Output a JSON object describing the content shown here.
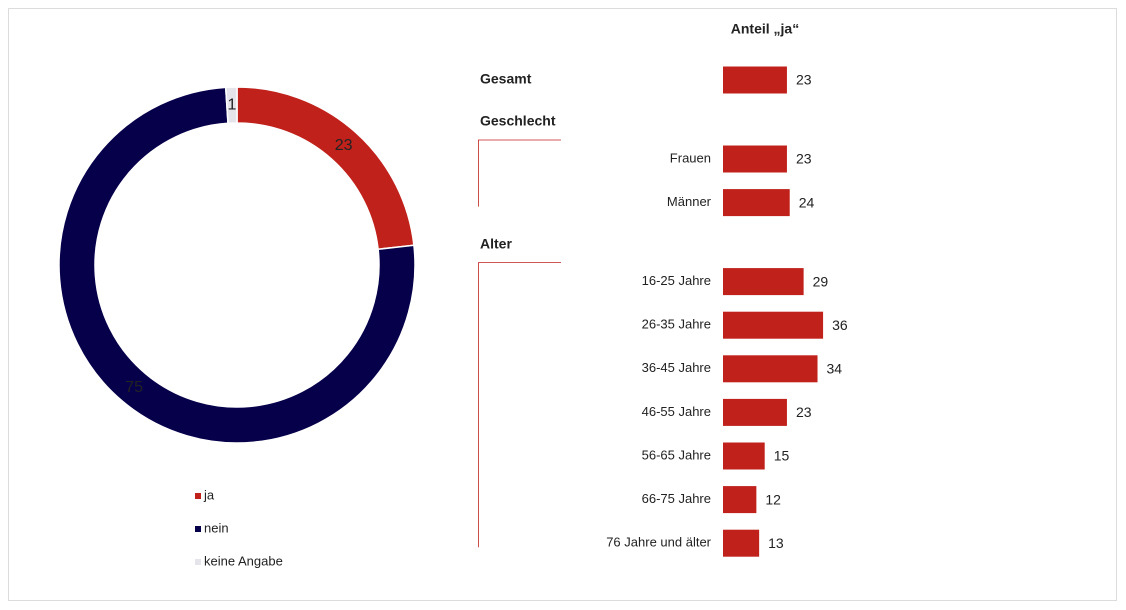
{
  "chart_data": [
    {
      "type": "pie",
      "categories": [
        "ja",
        "nein",
        "keine Angabe"
      ],
      "values": [
        23,
        75,
        1
      ],
      "colors": [
        "#c0211b",
        "#06004b",
        "#e4e4ea"
      ],
      "legend": "bottom"
    },
    {
      "type": "bar",
      "title": "Anteil „ja“",
      "color": "#c0211b",
      "groups": [
        {
          "name": "Gesamt",
          "categories": [
            null
          ],
          "values": [
            23
          ]
        },
        {
          "name": "Geschlecht",
          "categories": [
            "Frauen",
            "Männer"
          ],
          "values": [
            23,
            24
          ]
        },
        {
          "name": "Alter",
          "categories": [
            "16-25 Jahre",
            "26-35 Jahre",
            "36-45 Jahre",
            "46-55 Jahre",
            "56-65 Jahre",
            "66-75 Jahre",
            "76 Jahre und älter"
          ],
          "values": [
            29,
            36,
            34,
            23,
            15,
            12,
            13
          ]
        }
      ]
    }
  ]
}
